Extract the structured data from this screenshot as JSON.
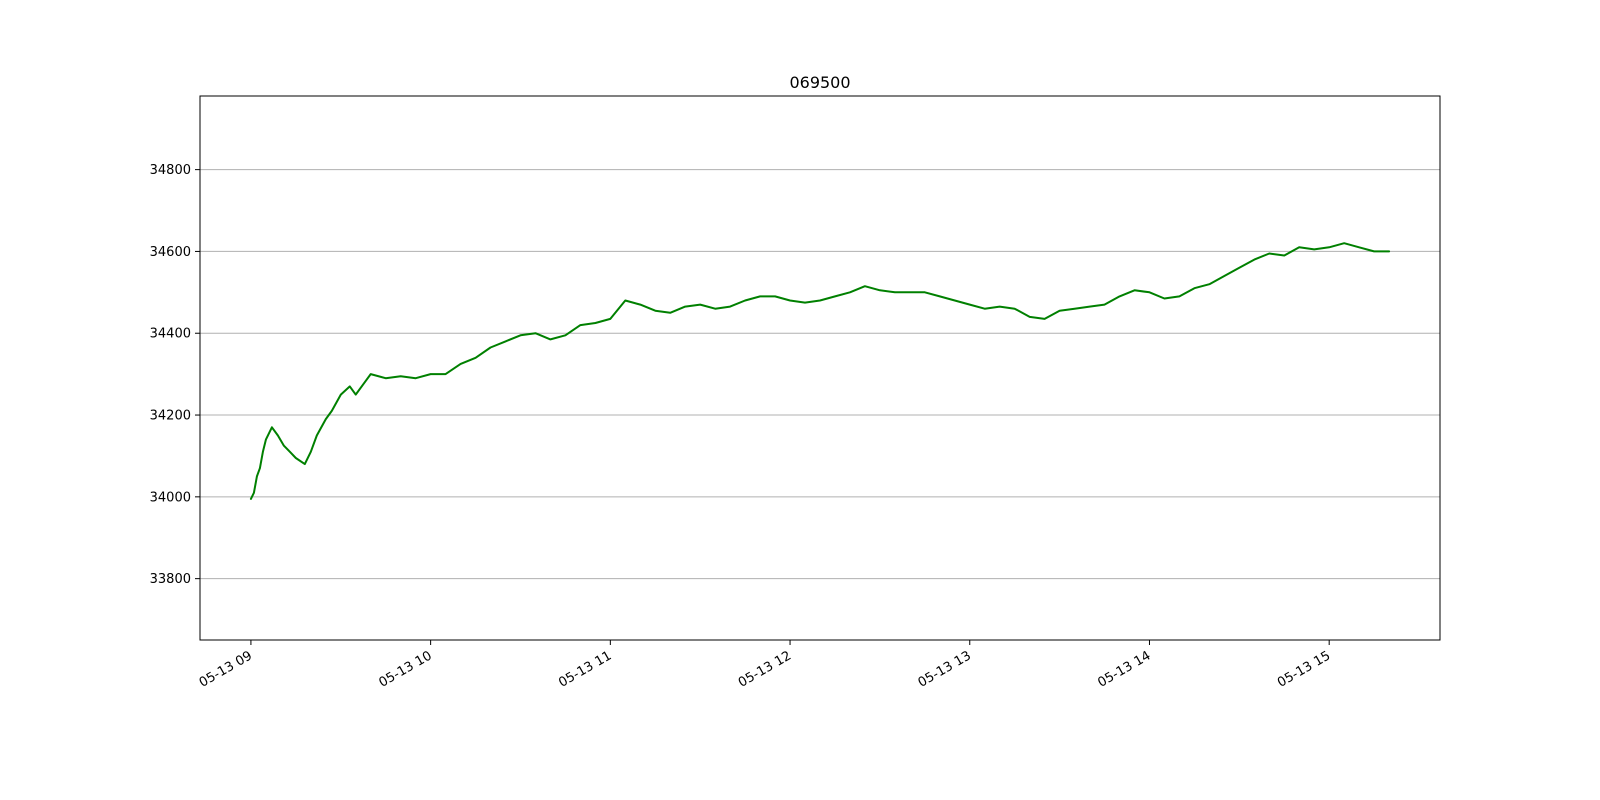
{
  "chart_data": {
    "type": "line",
    "title": "069500",
    "xlabel": "",
    "ylabel": "",
    "x_tick_labels": [
      "05-13 09",
      "05-13 10",
      "05-13 11",
      "05-13 12",
      "05-13 13",
      "05-13 14",
      "05-13 15"
    ],
    "y_ticks": [
      33800,
      34000,
      34200,
      34400,
      34600,
      34800
    ],
    "y_tick_labels": [
      "33800",
      "34000",
      "34200",
      "34400",
      "34600",
      "34800"
    ],
    "xlim": [
      "05-13 08:43",
      "05-13 15:37"
    ],
    "ylim": [
      33650,
      34980
    ],
    "grid": "horizontal",
    "legend": "none",
    "colors": {
      "line": "#008000",
      "grid": "#b0b0b0",
      "frame": "#000000"
    },
    "series": [
      {
        "x": [
          "09:00",
          "09:01",
          "09:02",
          "09:03",
          "09:04",
          "09:05",
          "09:07",
          "09:09",
          "09:11",
          "09:13",
          "09:15",
          "09:18",
          "09:20",
          "09:22",
          "09:25",
          "09:27",
          "09:30",
          "09:33",
          "09:35",
          "09:38",
          "09:40",
          "09:45",
          "09:50",
          "09:55",
          "10:00",
          "10:05",
          "10:10",
          "10:15",
          "10:20",
          "10:25",
          "10:30",
          "10:35",
          "10:40",
          "10:45",
          "10:50",
          "10:55",
          "11:00",
          "11:05",
          "11:10",
          "11:15",
          "11:20",
          "11:25",
          "11:30",
          "11:35",
          "11:40",
          "11:45",
          "11:50",
          "11:55",
          "12:00",
          "12:05",
          "12:10",
          "12:15",
          "12:20",
          "12:25",
          "12:30",
          "12:35",
          "12:40",
          "12:45",
          "12:50",
          "12:55",
          "13:00",
          "13:05",
          "13:10",
          "13:15",
          "13:20",
          "13:25",
          "13:30",
          "13:35",
          "13:40",
          "13:45",
          "13:50",
          "13:55",
          "14:00",
          "14:05",
          "14:10",
          "14:15",
          "14:20",
          "14:25",
          "14:30",
          "14:35",
          "14:40",
          "14:45",
          "14:50",
          "14:55",
          "15:00",
          "15:05",
          "15:10",
          "15:15",
          "15:20"
        ],
        "y": [
          33995,
          34010,
          34050,
          34070,
          34110,
          34140,
          34170,
          34150,
          34125,
          34110,
          34095,
          34080,
          34110,
          34150,
          34190,
          34210,
          34250,
          34270,
          34250,
          34280,
          34300,
          34290,
          34295,
          34290,
          34300,
          34300,
          34325,
          34340,
          34365,
          34380,
          34395,
          34400,
          34385,
          34395,
          34420,
          34425,
          34435,
          34480,
          34470,
          34455,
          34450,
          34465,
          34470,
          34460,
          34465,
          34480,
          34490,
          34490,
          34480,
          34475,
          34480,
          34490,
          34500,
          34515,
          34505,
          34500,
          34500,
          34500,
          34490,
          34480,
          34470,
          34460,
          34465,
          34460,
          34440,
          34435,
          34455,
          34460,
          34465,
          34470,
          34490,
          34505,
          34500,
          34485,
          34490,
          34510,
          34520,
          34540,
          34560,
          34580,
          34595,
          34590,
          34610,
          34605,
          34610,
          34620,
          34610,
          34600,
          34600
        ]
      }
    ]
  }
}
